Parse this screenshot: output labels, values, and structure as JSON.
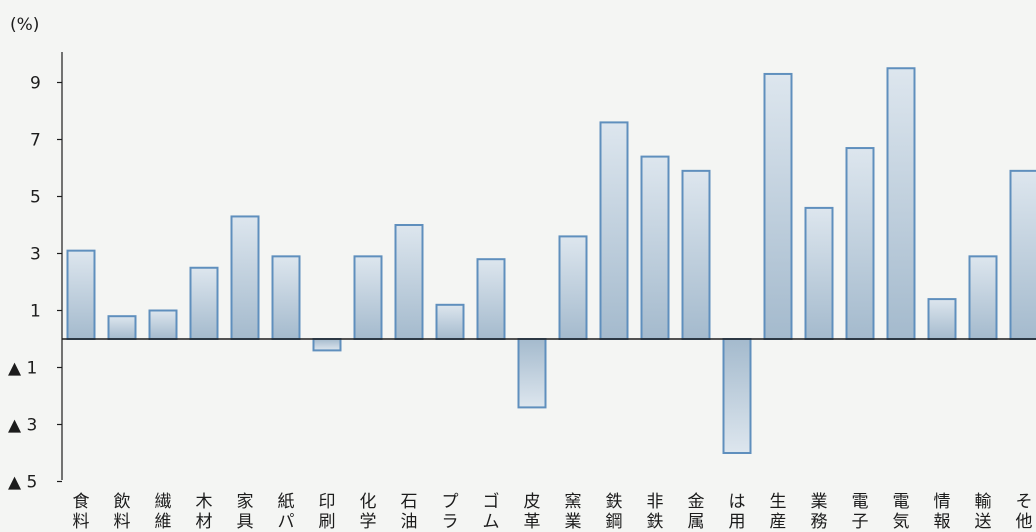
{
  "chart_data": {
    "type": "bar",
    "unit_label": "(%)",
    "categories": [
      "食料",
      "飲料",
      "繊維",
      "木材",
      "家具",
      "紙パ",
      "印刷",
      "化学",
      "石油",
      "プラ",
      "ゴム",
      "皮革",
      "窯業",
      "鉄鋼",
      "非鉄",
      "金属",
      "は用",
      "生産",
      "業務",
      "電子",
      "電気",
      "情報",
      "輸送",
      "そ他"
    ],
    "values": [
      3.1,
      0.8,
      1.0,
      2.5,
      4.3,
      2.9,
      -0.4,
      2.9,
      4.0,
      1.2,
      2.8,
      -2.4,
      3.6,
      7.6,
      6.4,
      5.9,
      -4.0,
      9.3,
      4.6,
      6.7,
      9.5,
      1.4,
      2.9,
      5.9
    ],
    "ylim": [
      -5,
      10
    ],
    "y_ticks": [
      {
        "value": 9,
        "label": "9"
      },
      {
        "value": 7,
        "label": "7"
      },
      {
        "value": 5,
        "label": "5"
      },
      {
        "value": 3,
        "label": "3"
      },
      {
        "value": 1,
        "label": "1"
      },
      {
        "value": -1,
        "label": "▲ 1"
      },
      {
        "value": -3,
        "label": "▲ 3"
      },
      {
        "value": -5,
        "label": "▲ 5"
      }
    ],
    "grid": false,
    "bar_fill_top": "#d9e3ec",
    "bar_fill_bottom": "#a2b8cc",
    "bar_stroke": "#5f8fbd"
  }
}
